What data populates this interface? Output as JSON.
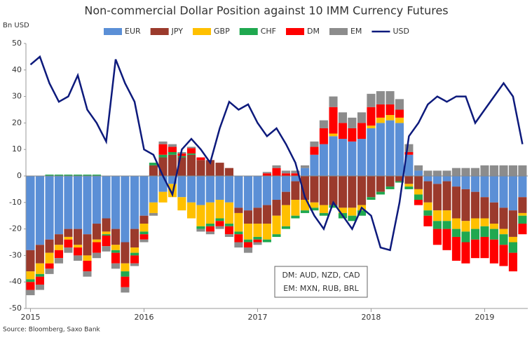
{
  "chart_data": {
    "type": "stacked-bar-line",
    "title": "Non-commercial Dollar Position against 10 IMM Currency Futures",
    "y_label": "Bn USD",
    "source": "Source: Bloomberg, Saxo Bank",
    "annotations": [
      "DM: AUD, NZD, CAD",
      "EM: MXN, RUB, BRL"
    ],
    "x": [
      2015,
      2015.083,
      2015.167,
      2015.25,
      2015.333,
      2015.417,
      2015.5,
      2015.583,
      2015.667,
      2015.75,
      2015.833,
      2015.917,
      2016,
      2016.083,
      2016.167,
      2016.25,
      2016.333,
      2016.417,
      2016.5,
      2016.583,
      2016.667,
      2016.75,
      2016.833,
      2016.917,
      2017,
      2017.083,
      2017.167,
      2017.25,
      2017.333,
      2017.417,
      2017.5,
      2017.583,
      2017.667,
      2017.75,
      2017.833,
      2017.917,
      2018,
      2018.083,
      2018.167,
      2018.25,
      2018.333,
      2018.417,
      2018.5,
      2018.583,
      2018.667,
      2018.75,
      2018.833,
      2018.917,
      2019,
      2019.083,
      2019.167,
      2019.25,
      2019.333
    ],
    "series": [
      {
        "name": "EUR",
        "color": "#5b8fd6",
        "values": [
          -28,
          -26,
          -24,
          -22,
          -20,
          -20,
          -22,
          -18,
          -16,
          -20,
          -25,
          -20,
          -15,
          -10,
          -6,
          -3,
          -8,
          -10,
          -11,
          -10,
          -9,
          -10,
          -12,
          -13,
          -12,
          -11,
          -9,
          -6,
          -2,
          3,
          8,
          12,
          15,
          14,
          13,
          14,
          18,
          20,
          21,
          20,
          8,
          2,
          -2,
          -3,
          -2,
          -4,
          -5,
          -6,
          -8,
          -10,
          -12,
          -13,
          -8
        ]
      },
      {
        "name": "JPY",
        "color": "#9b3a2c",
        "values": [
          -8,
          -7,
          -5,
          -4,
          -3,
          -6,
          -8,
          -6,
          -5,
          -6,
          -8,
          -7,
          -3,
          4,
          7,
          8,
          7,
          8,
          6,
          6,
          5,
          3,
          -2,
          -5,
          -6,
          -7,
          -6,
          -5,
          -7,
          -9,
          -10,
          -11,
          -11,
          -12,
          -12,
          -11,
          -8,
          -6,
          -4,
          -2,
          -3,
          -5,
          -8,
          -10,
          -11,
          -12,
          -12,
          -10,
          -8,
          -8,
          -8,
          -10,
          -6
        ]
      },
      {
        "name": "GBP",
        "color": "#ffc000",
        "values": [
          -3,
          -4,
          -4,
          -2,
          -1,
          -1,
          -2,
          -1,
          -1,
          -2,
          -3,
          -2,
          -3,
          -4,
          -4,
          -5,
          -5,
          -6,
          -8,
          -8,
          -7,
          -8,
          -7,
          -6,
          -5,
          -6,
          -7,
          -8,
          -6,
          -4,
          -2,
          -3,
          1,
          -2,
          -3,
          -2,
          1,
          2,
          2,
          2,
          -1,
          -2,
          -3,
          -4,
          -4,
          -4,
          -4,
          -4,
          -3,
          -2,
          -2,
          -2,
          -1
        ]
      },
      {
        "name": "CHF",
        "color": "#1fa84f",
        "values": [
          -1,
          -1,
          0.5,
          0.5,
          0.5,
          0.5,
          0.5,
          0.5,
          -0.5,
          -1,
          -2,
          -1,
          -1,
          1,
          1,
          1,
          0.5,
          0.5,
          -1,
          -1,
          -1,
          -1,
          -1,
          -1,
          -1,
          -1,
          -1,
          -1,
          -1,
          -1,
          -1,
          -1,
          -1,
          -2,
          -2,
          -2,
          -1,
          -1,
          -1,
          -0.5,
          -1,
          -2,
          -2,
          -3,
          -3,
          -3,
          -4,
          -4,
          -4,
          -4,
          -4,
          -4,
          -3
        ]
      },
      {
        "name": "DM",
        "color": "#ff0000",
        "values": [
          -3,
          -3,
          -2,
          -3,
          -3,
          -3,
          -4,
          -4,
          -4,
          -4,
          -4,
          -3,
          -2,
          0,
          4,
          2,
          1,
          2,
          1,
          -2,
          -2,
          -3,
          -3,
          -2,
          -1,
          1,
          3,
          1,
          1,
          0,
          3,
          6,
          10,
          6,
          5,
          6,
          7,
          5,
          4,
          3,
          1,
          -2,
          -4,
          -6,
          -8,
          -9,
          -8,
          -7,
          -8,
          -9,
          -8,
          -7,
          -4
        ]
      },
      {
        "name": "EM",
        "color": "#8c8c8c",
        "values": [
          -2,
          -2,
          -2,
          -2,
          -2,
          -2,
          -2,
          -2,
          -2,
          -2,
          -2,
          -1,
          -1,
          -1,
          1,
          1,
          0.5,
          0.5,
          -1,
          -1,
          -1,
          -1,
          -2,
          -2,
          -1,
          0.5,
          1,
          1,
          1,
          1,
          2,
          3,
          4,
          4,
          4,
          4,
          5,
          5,
          5,
          4,
          3,
          2,
          2,
          2,
          2,
          3,
          3,
          3,
          4,
          4,
          4,
          4,
          4
        ]
      },
      {
        "name": "USD",
        "color": "#0d1a7c",
        "line": true,
        "values": [
          42,
          45,
          35,
          28,
          30,
          38,
          25,
          20,
          13,
          44,
          35,
          28,
          10,
          8,
          0,
          -7,
          10,
          14,
          10,
          5,
          18,
          28,
          25,
          27,
          20,
          15,
          18,
          12,
          5,
          -8,
          -15,
          -20,
          -10,
          -15,
          -20,
          -12,
          -15,
          -27,
          -28,
          -10,
          15,
          20,
          27,
          30,
          28,
          30,
          30,
          20,
          25,
          30,
          35,
          30,
          12
        ]
      }
    ],
    "xlim": [
      2014.96,
      2019.38
    ],
    "xticks": [
      2015,
      2016,
      2017,
      2018,
      2019
    ],
    "ylim": [
      -50,
      50
    ],
    "yticks": [
      50,
      40,
      30,
      20,
      10,
      0,
      -10,
      -20,
      -30,
      -40,
      -50
    ],
    "grid": false
  }
}
